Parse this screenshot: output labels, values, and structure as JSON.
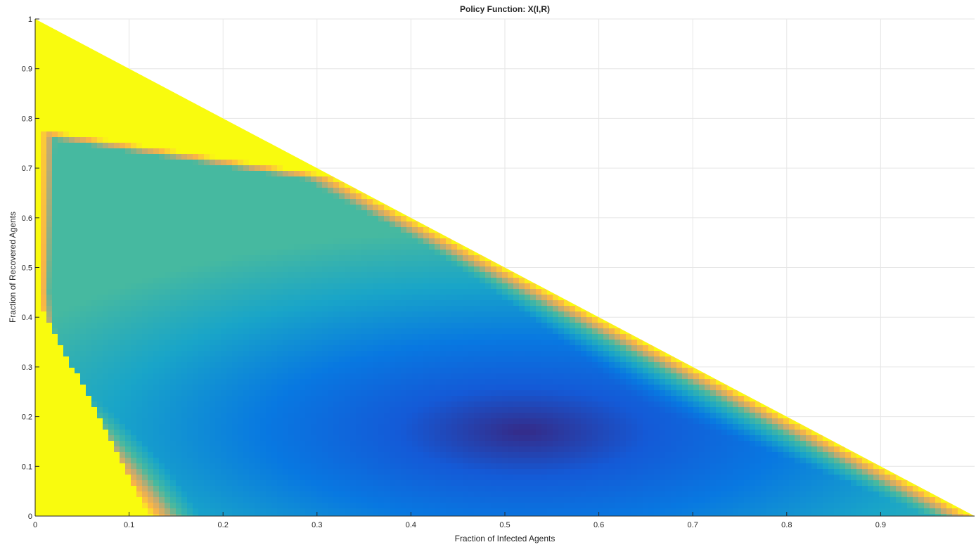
{
  "chart_data": {
    "type": "heatmap",
    "title": "Policy Function: X(I,R)",
    "xlabel": "Fraction of Infected Agents",
    "ylabel": "Fraction of Recovered Agents",
    "xlim": [
      0,
      1
    ],
    "ylim": [
      0,
      1
    ],
    "xticks": [
      0,
      0.1,
      0.2,
      0.3,
      0.4,
      0.5,
      0.6,
      0.7,
      0.8,
      0.9
    ],
    "xtick_labels": [
      "0",
      "0.1",
      "0.2",
      "0.3",
      "0.4",
      "0.5",
      "0.6",
      "0.7",
      "0.8",
      "0.9"
    ],
    "yticks": [
      0,
      0.1,
      0.2,
      0.3,
      0.4,
      0.5,
      0.6,
      0.7,
      0.8,
      0.9,
      1
    ],
    "ytick_labels": [
      "0",
      "0.1",
      "0.2",
      "0.3",
      "0.4",
      "0.5",
      "0.6",
      "0.7",
      "0.8",
      "0.9",
      "1"
    ],
    "grid": true,
    "domain": "I + R <= 1",
    "colormap": "parula",
    "colors": {
      "low": "#352a87",
      "mid_low": "#0f5cdd",
      "mid": "#1eaaa8",
      "mid_high": "#f8ba43",
      "high": "#f9fb0e",
      "background": "#ffffff",
      "grid": "#e6e6e6",
      "axis": "#262626"
    },
    "description_levels": {
      "min_region_center": [
        0.5,
        0.2
      ],
      "boundary_value": "high"
    }
  }
}
